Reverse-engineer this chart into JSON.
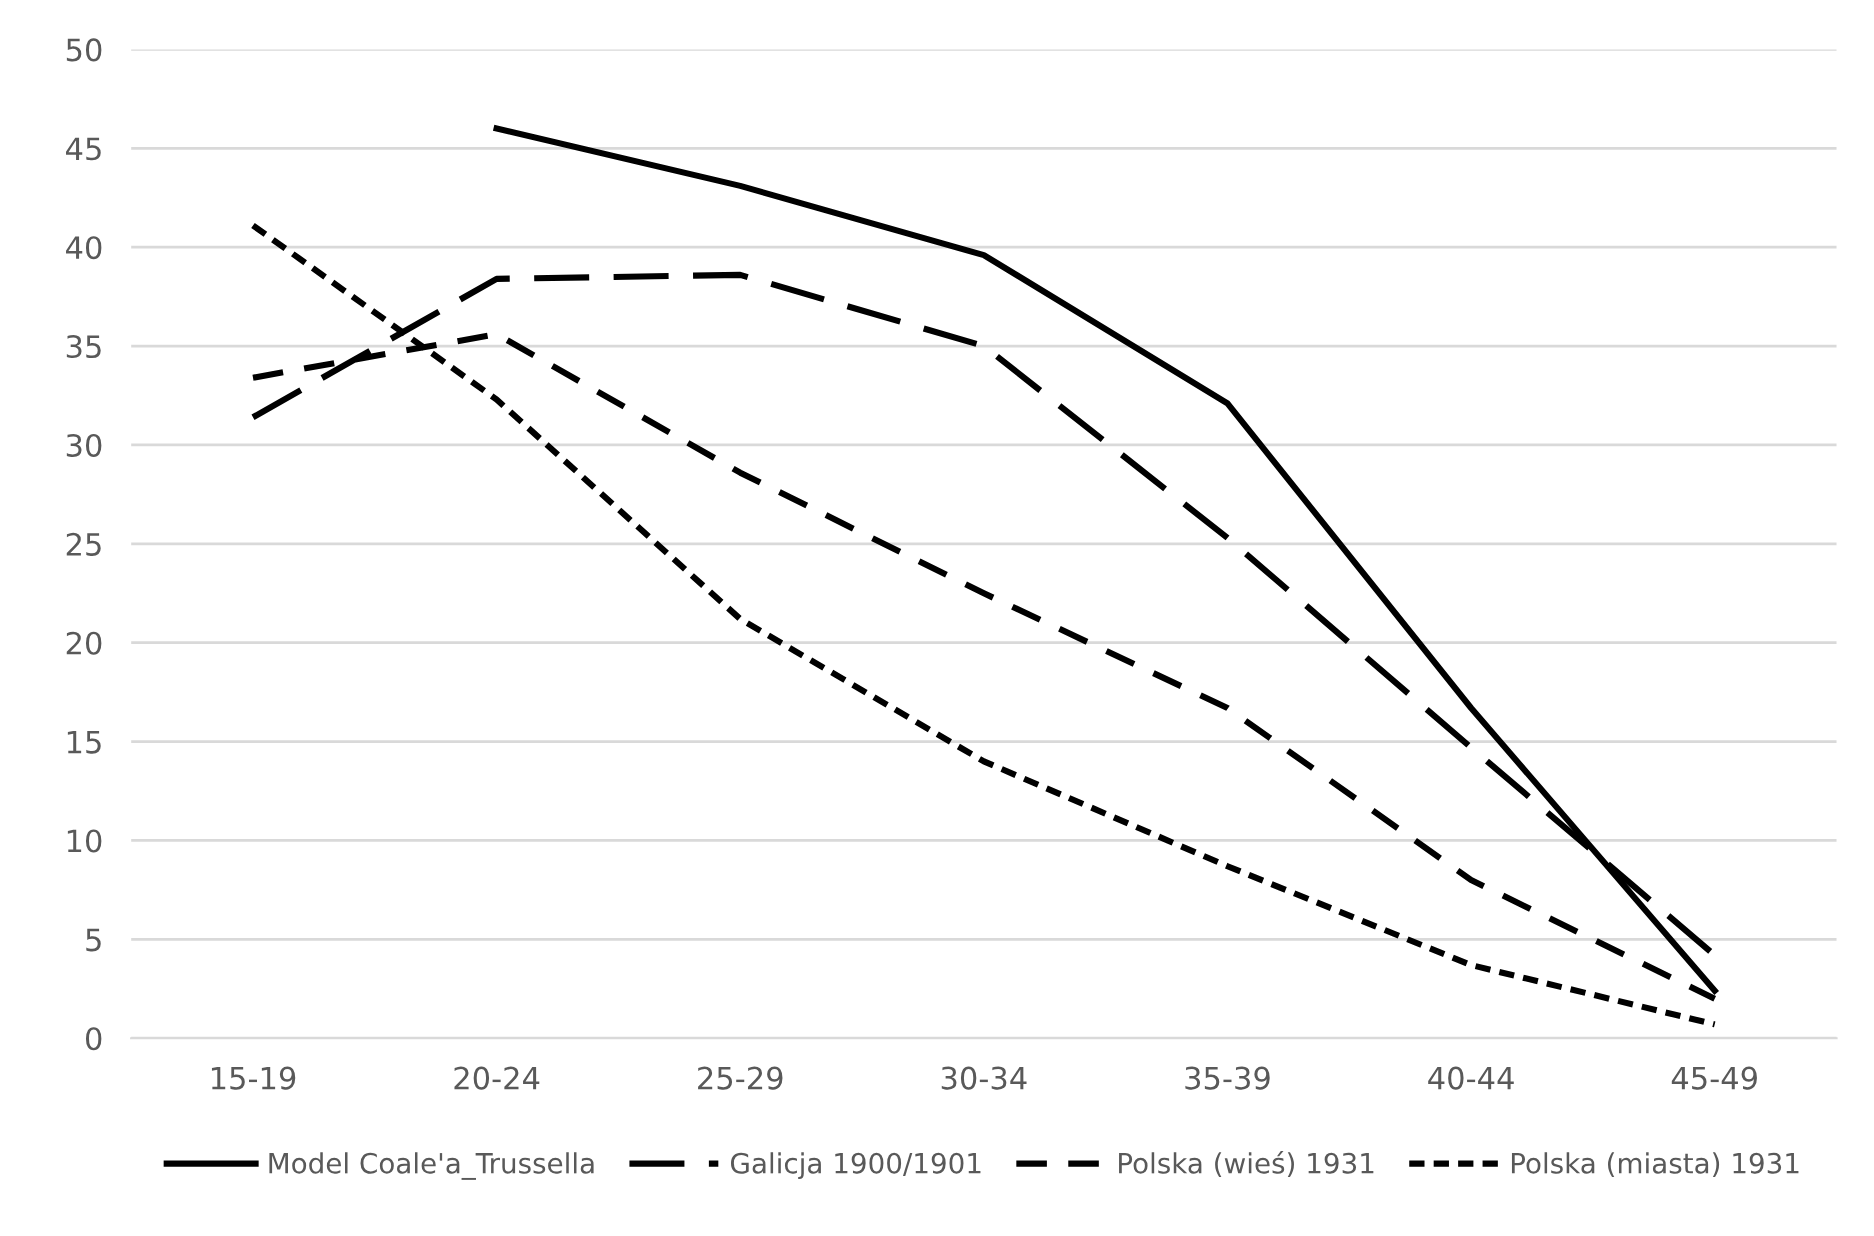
{
  "chart_data": {
    "type": "line",
    "categories": [
      "15-19",
      "20-24",
      "25-29",
      "30-34",
      "35-39",
      "40-44",
      "45-49"
    ],
    "series": [
      {
        "name": "Model Coale'a_Trussella",
        "color": "#000000",
        "line_style": "solid",
        "values": [
          null,
          46.0,
          43.1,
          39.6,
          32.1,
          16.7,
          2.4
        ]
      },
      {
        "name": "Galicja 1900/1901",
        "color": "#000000",
        "line_style": "dashed",
        "values": [
          31.4,
          38.4,
          38.6,
          35.0,
          25.3,
          14.7,
          4.2
        ]
      },
      {
        "name": "Polska (wieś) 1931",
        "color": "#000000",
        "line_style": "dashed",
        "values": [
          33.4,
          35.6,
          28.6,
          22.5,
          16.7,
          8.0,
          2.0
        ]
      },
      {
        "name": "Polska (miasta) 1931",
        "color": "#000000",
        "line_style": "dotted",
        "values": [
          41.1,
          32.3,
          21.2,
          14.0,
          8.7,
          3.7,
          0.7
        ]
      }
    ],
    "ylim": [
      0,
      50
    ],
    "yticks": [
      0,
      5,
      10,
      15,
      20,
      25,
      30,
      35,
      40,
      45,
      50
    ],
    "grid": "y",
    "legend": "bottom",
    "marker": "none"
  }
}
